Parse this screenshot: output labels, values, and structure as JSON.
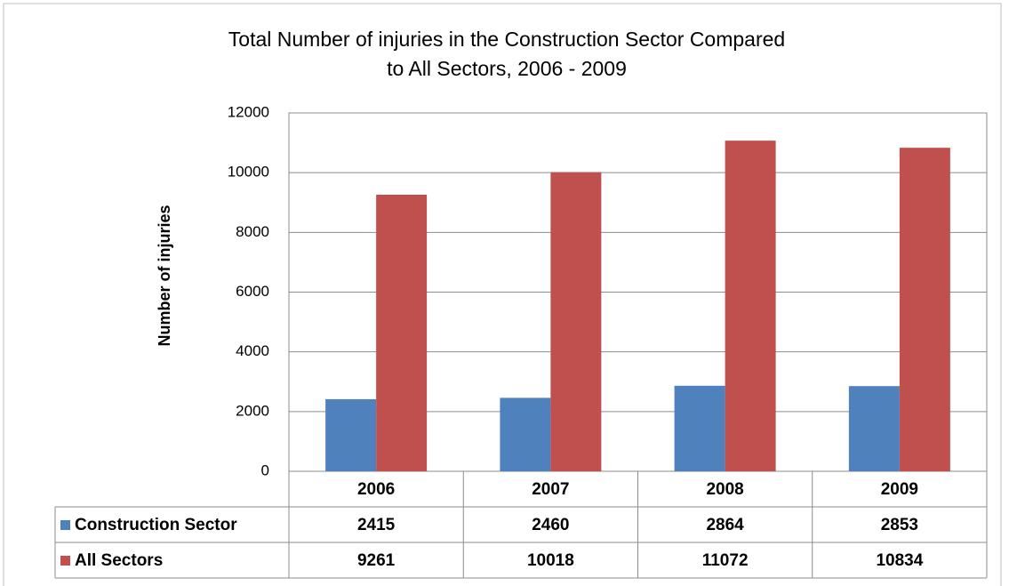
{
  "chart_data": {
    "type": "bar",
    "title": [
      "Total Number of injuries in the Construction Sector Compared",
      "to All Sectors, 2006 - 2009"
    ],
    "y_axis_label": "Number of injuries",
    "categories": [
      "2006",
      "2007",
      "2008",
      "2009"
    ],
    "series": [
      {
        "name": "Construction Sector",
        "color": "#4f81bd",
        "values": [
          2415,
          2460,
          2864,
          2853
        ]
      },
      {
        "name": "All Sectors",
        "color": "#c0504d",
        "values": [
          9261,
          10018,
          11072,
          10834
        ]
      }
    ],
    "ylim": [
      0,
      12000
    ],
    "yticks": [
      0,
      2000,
      4000,
      6000,
      8000,
      10000,
      12000
    ],
    "grid": true
  }
}
